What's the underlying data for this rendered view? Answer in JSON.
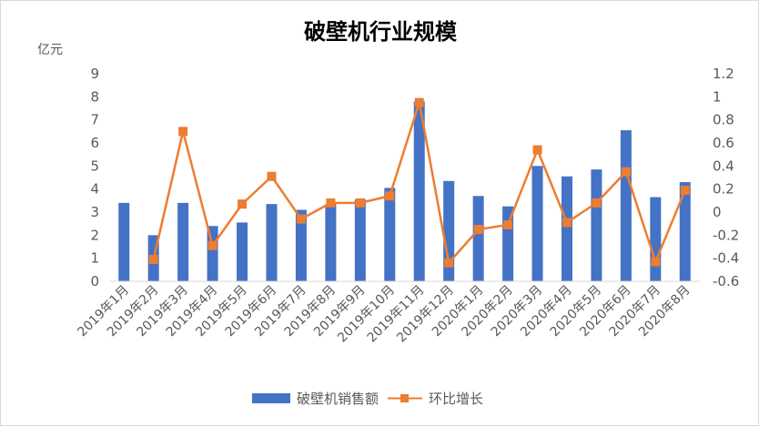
{
  "chart_data": {
    "type": "bar",
    "title": "破壁机行业规模",
    "y_left_unit": "亿元",
    "categories": [
      "2019年1月",
      "2019年2月",
      "2019年3月",
      "2019年4月",
      "2019年5月",
      "2019年6月",
      "2019年7月",
      "2019年8月",
      "2019年9月",
      "2019年10月",
      "2019年11月",
      "2019年12月",
      "2020年1月",
      "2020年2月",
      "2020年3月",
      "2020年4月",
      "2020年5月",
      "2020年6月",
      "2020年7月",
      "2020年8月"
    ],
    "series": [
      {
        "name": "破壁机销售额",
        "type": "bar",
        "axis": "left",
        "color": "#4472c4",
        "values": [
          3.4,
          2.0,
          3.4,
          2.4,
          2.55,
          3.35,
          3.1,
          3.35,
          3.55,
          4.05,
          7.8,
          4.35,
          3.7,
          3.25,
          5.0,
          4.55,
          4.85,
          6.55,
          3.65,
          4.3
        ]
      },
      {
        "name": "环比增长",
        "type": "line",
        "axis": "right",
        "color": "#ed7d31",
        "values": [
          null,
          -0.41,
          0.7,
          -0.29,
          0.07,
          0.31,
          -0.06,
          0.08,
          0.08,
          0.14,
          0.95,
          -0.44,
          -0.15,
          -0.11,
          0.54,
          -0.09,
          0.08,
          0.35,
          -0.43,
          0.19
        ]
      }
    ],
    "y_left_ticks": [
      "0",
      "1",
      "2",
      "3",
      "4",
      "5",
      "6",
      "7",
      "8",
      "9"
    ],
    "y_right_ticks": [
      "-0.6",
      "-0.4",
      "-0.2",
      "0",
      "0.2",
      "0.4",
      "0.6",
      "0.8",
      "1",
      "1.2"
    ],
    "ylim_left": [
      0,
      9
    ],
    "ylim_right": [
      -0.6,
      1.2
    ],
    "grid": false,
    "legend_position": "bottom"
  }
}
